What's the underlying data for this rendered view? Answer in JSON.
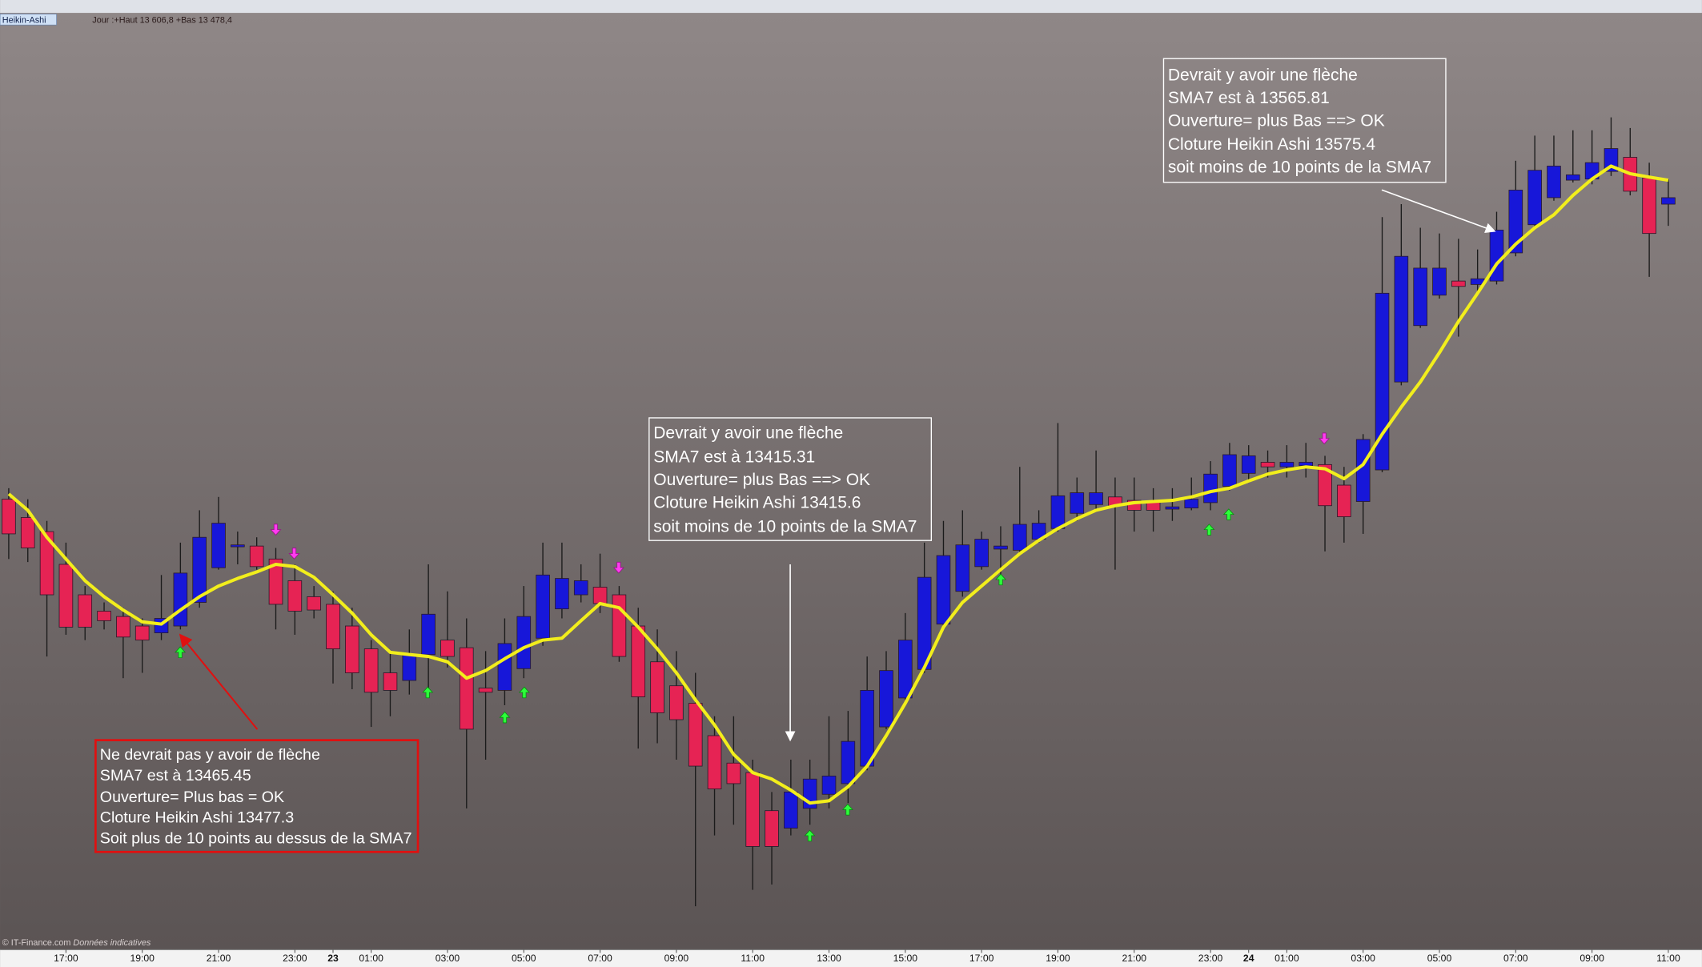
{
  "header": {
    "instrument": "Heikin-Ashi",
    "info": "Jour :+Haut 13 606,8 +Bas 13 478,4"
  },
  "footer": {
    "source": "© IT-Finance.com",
    "note": "Données indicatives"
  },
  "chart_data": {
    "type": "candlestick",
    "categories": [
      null,
      null,
      null,
      "17:00",
      null,
      null,
      null,
      "19:00",
      null,
      null,
      null,
      "21:00",
      null,
      null,
      null,
      "23:00",
      null,
      "23",
      null,
      "01:00",
      null,
      null,
      null,
      "03:00",
      null,
      null,
      null,
      "05:00",
      null,
      null,
      null,
      "07:00",
      null,
      null,
      null,
      "09:00",
      null,
      null,
      null,
      "11:00",
      null,
      null,
      null,
      "13:00",
      null,
      null,
      null,
      "15:00",
      null,
      null,
      null,
      "17:00",
      null,
      null,
      null,
      "19:00",
      null,
      null,
      null,
      "21:00",
      null,
      null,
      null,
      "23:00",
      null,
      "24",
      null,
      "01:00",
      null,
      null,
      null,
      "03:00",
      null,
      null,
      null,
      "05:00",
      null,
      null,
      null,
      "07:00",
      null,
      null,
      null,
      "09:00",
      null,
      null,
      null,
      "11:00"
    ],
    "open": [
      13494.9,
      13490.1,
      13486.4,
      13477.8,
      13469.8,
      13465.5,
      13464.1,
      13461.6,
      13459.8,
      13461.6,
      13467.8,
      13476.9,
      13482.4,
      13482.6,
      13479.2,
      13473.5,
      13469.3,
      13467.3,
      13461.6,
      13455.6,
      13449.3,
      13447.3,
      13454.1,
      13457.9,
      13455.9,
      13445.3,
      13444.7,
      13450.4,
      13458.4,
      13466.1,
      13469.8,
      13471.8,
      13469.8,
      13461.6,
      13452.2,
      13445.9,
      13441.3,
      13432.8,
      13425.6,
      13423.1,
      13413.1,
      13408.5,
      13413.7,
      13417.4,
      13420.2,
      13424.8,
      13435.1,
      13442.7,
      13450.2,
      13462.1,
      13470.7,
      13477.2,
      13481.8,
      13481.5,
      13484.4,
      13487.2,
      13491.2,
      13493.5,
      13495.5,
      13494.6,
      13494.3,
      13492.3,
      13492.6,
      13494,
      13498.3,
      13501.7,
      13504.6,
      13503.4,
      13503.7,
      13504,
      13498.6,
      13494.3,
      13502.6,
      13525.7,
      13540.5,
      13548.5,
      13552.2,
      13551.3,
      13552.2,
      13559.6,
      13567,
      13574.1,
      13578.7,
      13579,
      13581,
      13584.7,
      13579.3,
      13572.4
    ],
    "high": [
      13497.8,
      13494.9,
      13489.2,
      13483.5,
      13472.1,
      13467.8,
      13466.4,
      13463.6,
      13475,
      13483.5,
      13492,
      13495.5,
      13486.4,
      13484.9,
      13482.1,
      13477.8,
      13472.1,
      13470.7,
      13466.4,
      13457.9,
      13455,
      13460.7,
      13477.8,
      13470.7,
      13463.6,
      13455,
      13463.6,
      13472.1,
      13483.5,
      13483.5,
      13477.8,
      13480.6,
      13472.1,
      13466.4,
      13460.7,
      13455,
      13449.3,
      13437.9,
      13437.9,
      13426.5,
      13418,
      13426.5,
      13426.5,
      13437.9,
      13439.3,
      13453.6,
      13455,
      13465,
      13483.5,
      13489.2,
      13492,
      13486.4,
      13487.8,
      13503.4,
      13492,
      13514.9,
      13500.6,
      13507.7,
      13500.6,
      13500.6,
      13497.8,
      13497.8,
      13500.6,
      13504.9,
      13509.7,
      13509.1,
      13507.7,
      13509.1,
      13509.7,
      13506.3,
      13503.4,
      13512,
      13569,
      13572.4,
      13566.2,
      13564.7,
      13563.3,
      13560.5,
      13570.4,
      13583.8,
      13590.4,
      13590.4,
      13591.8,
      13591.8,
      13595.2,
      13592.4,
      13583.3,
      13579
    ],
    "low": [
      13479.2,
      13478.4,
      13453.6,
      13459.3,
      13457.9,
      13460.7,
      13447.9,
      13449.3,
      13457.9,
      13460.7,
      13466.4,
      13476.4,
      13477.8,
      13476.4,
      13460.7,
      13459.3,
      13463.6,
      13446.5,
      13445,
      13435.1,
      13437.9,
      13443.6,
      13445,
      13450.7,
      13413.7,
      13426.5,
      13440.8,
      13447.9,
      13456.4,
      13463.6,
      13467.8,
      13465,
      13452.2,
      13429.4,
      13430.8,
      13426.5,
      13388,
      13406.6,
      13409.4,
      13392.3,
      13393.7,
      13406.6,
      13409.4,
      13413.7,
      13415.1,
      13423.7,
      13434.5,
      13442.2,
      13449.3,
      13460.7,
      13469.3,
      13476.4,
      13475,
      13480.6,
      13483.5,
      13486.4,
      13489.2,
      13492,
      13476.4,
      13486.4,
      13486.4,
      13489.2,
      13492,
      13492,
      13497.2,
      13499.2,
      13500.6,
      13500.6,
      13500.6,
      13481.2,
      13483.5,
      13485.8,
      13502,
      13524.8,
      13539.9,
      13547.6,
      13537.6,
      13549,
      13551.3,
      13558.7,
      13566.2,
      13573.3,
      13578.1,
      13577.6,
      13579.8,
      13574.7,
      13553.3,
      13566.7
    ],
    "close": [
      13485.8,
      13482.1,
      13469.8,
      13461.3,
      13461.3,
      13463,
      13458.7,
      13457.9,
      13463.6,
      13475.5,
      13484.9,
      13488.6,
      13482.9,
      13477.2,
      13467.3,
      13465.5,
      13465.8,
      13455.6,
      13449.3,
      13444.2,
      13444.7,
      13454.1,
      13464.7,
      13453.6,
      13434.5,
      13444.2,
      13457,
      13464.1,
      13475,
      13474.1,
      13473.5,
      13467.5,
      13453.6,
      13443,
      13438.8,
      13437,
      13424.8,
      13418.8,
      13420.2,
      13403.7,
      13403.7,
      13418,
      13421.4,
      13422.2,
      13431.3,
      13444.7,
      13449.9,
      13457.9,
      13474.4,
      13480.1,
      13482.9,
      13484.4,
      13482.6,
      13488.3,
      13488.6,
      13495.8,
      13496.6,
      13496.6,
      13493.2,
      13492,
      13492,
      13492.9,
      13494.9,
      13501.5,
      13506.6,
      13506.3,
      13503.4,
      13504.6,
      13504.6,
      13493.2,
      13490.3,
      13510.6,
      13549,
      13558.7,
      13555.6,
      13555.6,
      13550.8,
      13552.8,
      13565.6,
      13576.1,
      13581.3,
      13582.4,
      13580.1,
      13583.3,
      13587,
      13575.8,
      13564.7,
      13574.1
    ],
    "up_color": "#1717d9",
    "down_color": "#e62354",
    "overlay": {
      "color": "#f2ee1c",
      "values": [
        13496.3,
        13492,
        13484.9,
        13479.2,
        13473.5,
        13469.3,
        13465.8,
        13462.7,
        13462.1,
        13465.8,
        13469.3,
        13472.1,
        13474.1,
        13475.8,
        13477.8,
        13477.2,
        13474.4,
        13469.8,
        13465,
        13459.3,
        13454.7,
        13454.1,
        13453.6,
        13452.2,
        13447.9,
        13449.9,
        13453,
        13455.9,
        13457.9,
        13458.4,
        13463,
        13467.5,
        13466.4,
        13461.3,
        13455.6,
        13449.3,
        13442.2,
        13435.6,
        13427.9,
        13423.1,
        13421.4,
        13418.5,
        13415.1,
        13415.7,
        13419.4,
        13424.8,
        13432.8,
        13441.3,
        13450.7,
        13461.3,
        13467.8,
        13472.1,
        13476.4,
        13480.6,
        13484.1,
        13487.2,
        13489.8,
        13492,
        13493.2,
        13494,
        13494.3,
        13494.6,
        13495.5,
        13496.9,
        13497.8,
        13499.7,
        13501.5,
        13502.6,
        13503.4,
        13502.9,
        13500.3,
        13504,
        13512,
        13519.1,
        13525.7,
        13533.4,
        13541.6,
        13549,
        13556.7,
        13561.9,
        13566.2,
        13569.6,
        13574.7,
        13579,
        13582.4,
        13580.4,
        13579.5,
        13578.7
      ]
    },
    "ylim": [
      13376.6,
      13622.6
    ]
  },
  "annotations": [
    {
      "lines": [
        "Ne devrait pas y avoir de flèche",
        "SMA7 est à 13465.45",
        "Ouverture= Plus bas = OK",
        "Cloture Heikin Ashi 13477.3",
        "Soit plus de 10 points au dessus de la SMA7"
      ]
    },
    {
      "lines": [
        "Devrait y avoir une flèche",
        "SMA7 est à 13415.31",
        "Ouverture= plus Bas ==> OK",
        "Cloture Heikin Ashi 13415.6",
        "soit moins de 10 points de la SMA7"
      ]
    },
    {
      "lines": [
        "Devrait y avoir une flèche",
        "SMA7 est à 13565.81",
        "Ouverture= plus Bas ==> OK",
        "Cloture Heikin Ashi 13575.4",
        "soit moins de 10 points de la SMA7"
      ]
    }
  ]
}
